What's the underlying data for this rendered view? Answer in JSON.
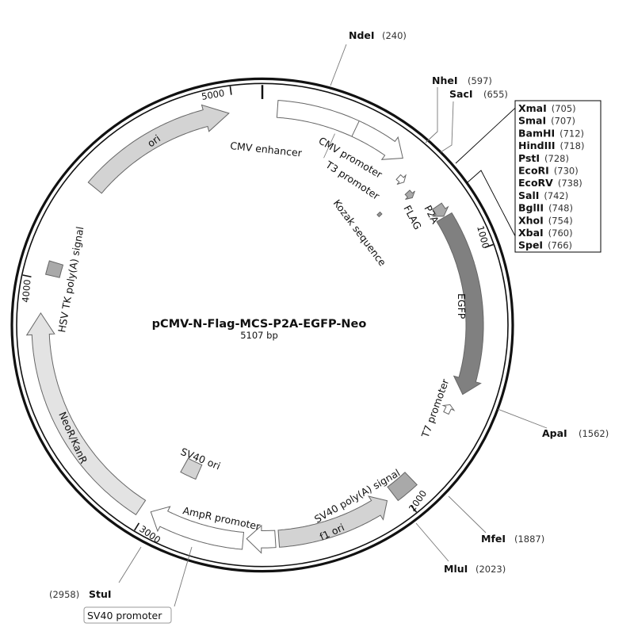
{
  "plasmid": {
    "name": "pCMV-N-Flag-MCS-P2A-EGFP-Neo",
    "size_label": "5107 bp",
    "length_bp": 5107
  },
  "ticks": [
    {
      "label": "1000",
      "bp": 1000
    },
    {
      "label": "2000",
      "bp": 2000
    },
    {
      "label": "3000",
      "bp": 3000
    },
    {
      "label": "4000",
      "bp": 4000
    },
    {
      "label": "5000",
      "bp": 5000
    }
  ],
  "features": {
    "ori": "ori",
    "cmv_enhancer": "CMV enhancer",
    "cmv_promoter": "CMV promoter",
    "t3_promoter": "T3 promoter",
    "kozak": "Kozak sequence",
    "flag": "FLAG",
    "p2a": "P2A",
    "egfp": "EGFP",
    "t7_promoter": "T7 promoter",
    "sv40_polya": "SV40 poly(A) signal",
    "f1_ori": "f1 ori",
    "ampr_promoter": "AmpR promoter",
    "sv40_ori": "SV40 ori",
    "sv40_promoter": "SV40 promoter",
    "neor": "NeoR/KanR",
    "hsv_tk_polya": "HSV TK poly(A) signal"
  },
  "sites": {
    "ndeI": {
      "name": "NdeI",
      "pos": "(240)"
    },
    "nheI": {
      "name": "NheI",
      "pos": "(597)"
    },
    "sacI": {
      "name": "SacI",
      "pos": "(655)"
    },
    "apaI": {
      "name": "ApaI",
      "pos": "(1562)"
    },
    "mfeI": {
      "name": "MfeI",
      "pos": "(1887)"
    },
    "mluI": {
      "name": "MluI",
      "pos": "(2023)"
    },
    "stuI": {
      "name": "StuI",
      "pos": "(2958)"
    }
  },
  "mcs_sites": [
    {
      "name": "XmaI",
      "pos": "(705)"
    },
    {
      "name": "SmaI",
      "pos": "(707)"
    },
    {
      "name": "BamHI",
      "pos": "(712)"
    },
    {
      "name": "HindIII",
      "pos": "(718)"
    },
    {
      "name": "PstI",
      "pos": "(728)"
    },
    {
      "name": "EcoRI",
      "pos": "(730)"
    },
    {
      "name": "EcoRV",
      "pos": "(738)"
    },
    {
      "name": "SalI",
      "pos": "(742)"
    },
    {
      "name": "BglII",
      "pos": "(748)"
    },
    {
      "name": "XhoI",
      "pos": "(754)"
    },
    {
      "name": "XbaI",
      "pos": "(760)"
    },
    {
      "name": "SpeI",
      "pos": "(766)"
    }
  ],
  "colors": {
    "backbone": "#111111",
    "egfp": "#808080",
    "light_feature": "#d3d3d3",
    "mid_feature": "#a9a9a9"
  }
}
